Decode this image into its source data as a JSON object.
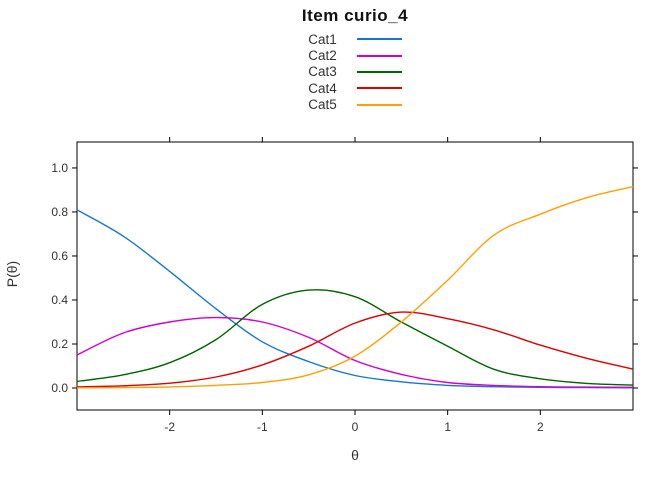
{
  "chart_data": {
    "type": "line",
    "title": "Item curio_4",
    "xlabel": "θ",
    "ylabel": "P(θ)",
    "legend_position": "top-center",
    "grid": false,
    "background": "#ffffff",
    "axis_color": "#000000",
    "xlim": [
      -3,
      3
    ],
    "ylim": [
      -0.1,
      1.118
    ],
    "xticks": {
      "values": [
        -2,
        -1,
        0,
        1,
        2
      ],
      "labels": [
        "-2",
        "-1",
        "0",
        "1",
        "2"
      ]
    },
    "yticks": {
      "values": [
        0,
        0.2,
        0.4,
        0.6,
        0.8,
        1.0
      ],
      "labels": [
        "0.0",
        "0.2",
        "0.4",
        "0.6",
        "0.8",
        "1.0"
      ]
    },
    "x": [
      -3,
      -2.5,
      -2,
      -1.5,
      -1,
      -0.5,
      0,
      0.5,
      1,
      1.5,
      2,
      2.5,
      3
    ],
    "series": [
      {
        "name": "Cat1",
        "color": "#1576d2",
        "values": [
          0.81,
          0.69,
          0.53,
          0.36,
          0.21,
          0.12,
          0.057,
          0.028,
          0.012,
          0.006,
          0.003,
          0.002,
          0.001
        ]
      },
      {
        "name": "Cat2",
        "color": "#cf00cf",
        "values": [
          0.15,
          0.25,
          0.3,
          0.32,
          0.3,
          0.23,
          0.125,
          0.062,
          0.025,
          0.012,
          0.006,
          0.004,
          0.003
        ]
      },
      {
        "name": "Cat3",
        "color": "#006400",
        "values": [
          0.03,
          0.06,
          0.115,
          0.22,
          0.38,
          0.445,
          0.415,
          0.3,
          0.19,
          0.085,
          0.042,
          0.021,
          0.013
        ]
      },
      {
        "name": "Cat4",
        "color": "#dd0000",
        "values": [
          0.005,
          0.01,
          0.022,
          0.05,
          0.105,
          0.19,
          0.295,
          0.345,
          0.315,
          0.264,
          0.195,
          0.135,
          0.086
        ]
      },
      {
        "name": "Cat5",
        "color": "#ffa000",
        "values": [
          0.001,
          0.002,
          0.005,
          0.012,
          0.025,
          0.06,
          0.145,
          0.3,
          0.49,
          0.695,
          0.79,
          0.865,
          0.915
        ]
      }
    ]
  }
}
